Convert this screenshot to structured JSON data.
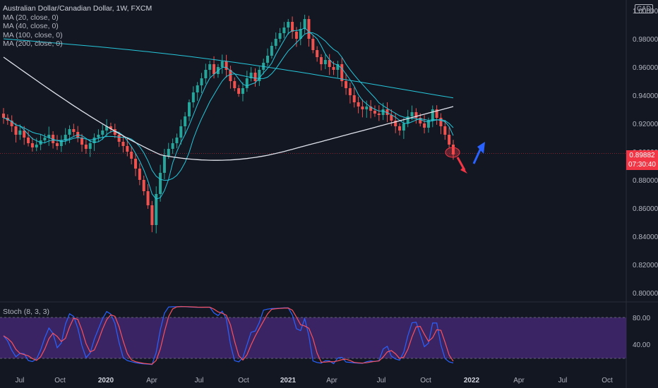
{
  "header": {
    "symbol_title": "Australian Dollar/Canadian Dollar, 1W, FXCM",
    "indicators": [
      "MA (20, close, 0)",
      "MA (40, close, 0)",
      "MA (100, close, 0)",
      "MA (200, close, 0)"
    ],
    "currency": "CAD"
  },
  "price_label": {
    "value": "0.89882",
    "countdown": "07:30:40",
    "color": "#f23645"
  },
  "stoch_panel": {
    "label": "Stoch (8, 3, 3)",
    "levels": [
      "80.00",
      "40.00"
    ],
    "band_color": "#4a2a7a",
    "k_color": "#2962ff",
    "d_color": "#f7525f"
  },
  "colors": {
    "background": "#131722",
    "up": "#26a69a",
    "down": "#ef5350",
    "ma20": "#26c6da",
    "ma40": "#26c6da",
    "ma100": "#26c6da",
    "ma200": "#e0e3eb",
    "arrow_down": "#f23645",
    "arrow_up": "#2962ff"
  },
  "chart_data": {
    "type": "candlestick",
    "y_axis": {
      "ticks": [
        "0.80000",
        "0.82000",
        "0.84000",
        "0.86000",
        "0.88000",
        "0.90000",
        "0.92000",
        "0.94000",
        "0.96000",
        "0.98000",
        "1.00000"
      ],
      "range": [
        0.795,
        1.005
      ]
    },
    "x_axis": {
      "ticks": [
        "Jul",
        "Oct",
        "2020",
        "Apr",
        "Jul",
        "Oct",
        "2021",
        "Apr",
        "Jul",
        "Oct",
        "2022",
        "Apr",
        "Jul",
        "Oct"
      ]
    },
    "last_price": 0.89882,
    "close_path": [
      0.924,
      0.922,
      0.918,
      0.912,
      0.915,
      0.91,
      0.906,
      0.903,
      0.905,
      0.908,
      0.91,
      0.912,
      0.906,
      0.904,
      0.908,
      0.912,
      0.916,
      0.914,
      0.91,
      0.905,
      0.902,
      0.906,
      0.91,
      0.912,
      0.915,
      0.918,
      0.916,
      0.912,
      0.907,
      0.904,
      0.9,
      0.895,
      0.888,
      0.88,
      0.872,
      0.862,
      0.848,
      0.87,
      0.885,
      0.897,
      0.902,
      0.906,
      0.91,
      0.918,
      0.925,
      0.935,
      0.942,
      0.947,
      0.952,
      0.958,
      0.962,
      0.955,
      0.96,
      0.964,
      0.958,
      0.95,
      0.945,
      0.941,
      0.945,
      0.952,
      0.956,
      0.95,
      0.958,
      0.963,
      0.968,
      0.975,
      0.98,
      0.984,
      0.988,
      0.992,
      0.985,
      0.98,
      0.987,
      0.994,
      0.98,
      0.972,
      0.967,
      0.962,
      0.965,
      0.96,
      0.958,
      0.962,
      0.95,
      0.945,
      0.94,
      0.935,
      0.932,
      0.93,
      0.932,
      0.929,
      0.927,
      0.926,
      0.93,
      0.926,
      0.922,
      0.918,
      0.915,
      0.92,
      0.925,
      0.928,
      0.924,
      0.92,
      0.917,
      0.922,
      0.93,
      0.924,
      0.918,
      0.912,
      0.905,
      0.898
    ],
    "annotations": [
      "ellipse at last candle",
      "red down arrow",
      "blue up arrow"
    ]
  }
}
